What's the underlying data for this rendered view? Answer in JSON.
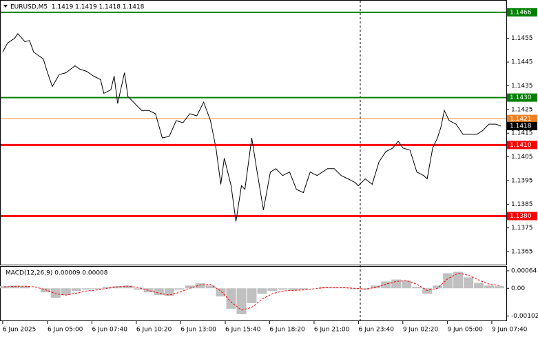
{
  "chart_data": [
    {
      "type": "line",
      "title": "EURUSD,M5  1.1419 1.1419 1.1418 1.1418",
      "xlim": [
        2.19,
        32.54
      ],
      "ylim": [
        1.13595,
        1.14709
      ],
      "xticks": [
        {
          "value": 2.31,
          "label": "6 Jun 2025"
        },
        {
          "value": 5.0,
          "label": "6 Jun 05:00"
        },
        {
          "value": 7.67,
          "label": "6 Jun 07:40"
        },
        {
          "value": 10.33,
          "label": "6 Jun 10:20"
        },
        {
          "value": 13.0,
          "label": "6 Jun 13:00"
        },
        {
          "value": 15.67,
          "label": "6 Jun 15:40"
        },
        {
          "value": 18.33,
          "label": "6 Jun 18:20"
        },
        {
          "value": 21.0,
          "label": "6 Jun 21:00"
        },
        {
          "value": 23.67,
          "label": "6 Jun 23:40"
        },
        {
          "value": 26.33,
          "label": "9 Jun 02:20"
        },
        {
          "value": 29.0,
          "label": "9 Jun 05:00"
        },
        {
          "value": 31.67,
          "label": "9 Jun 07:40"
        }
      ],
      "yticks": [
        1.1455,
        1.1445,
        1.1435,
        1.1425,
        1.1415,
        1.1405,
        1.1395,
        1.1385,
        1.1375,
        1.1365
      ],
      "levels": [
        {
          "value": 1.1466,
          "label": "1.1466",
          "color": "#008000",
          "style": "thick"
        },
        {
          "value": 1.143,
          "label": "1.1430",
          "color": "#008000",
          "style": "thick"
        },
        {
          "value": 1.1421,
          "label": "1.1421",
          "color": "#f08020",
          "style": "thin"
        },
        {
          "value": 1.1418,
          "label": "1.1418",
          "color": "#000000",
          "style": "none"
        },
        {
          "value": 1.141,
          "label": "1.1410",
          "color": "#ff0000",
          "style": "bold"
        },
        {
          "value": 1.138,
          "label": "1.1380",
          "color": "#ff0000",
          "style": "bold"
        }
      ],
      "series": [
        {
          "kind": "line",
          "color": "#000000",
          "x": [
            2.31,
            2.6,
            3.02,
            3.22,
            3.64,
            3.92,
            4.17,
            4.75,
            5.0,
            5.29,
            5.7,
            6.11,
            6.65,
            6.94,
            7.35,
            7.76,
            8.18,
            8.38,
            8.8,
            9.0,
            9.21,
            9.62,
            9.83,
            10.24,
            10.65,
            11.07,
            11.48,
            11.89,
            12.31,
            12.72,
            13.13,
            13.54,
            13.96,
            14.37,
            14.78,
            15.11,
            15.4,
            15.61,
            16.02,
            16.31,
            16.64,
            16.85,
            17.26,
            17.55,
            17.96,
            18.38,
            18.71,
            19.12,
            19.53,
            19.94,
            20.36,
            20.77,
            21.18,
            21.8,
            22.21,
            22.63,
            23.04,
            23.45,
            23.66,
            24.07,
            24.49,
            24.9,
            25.31,
            25.72,
            26.05,
            26.34,
            26.76,
            27.17,
            27.58,
            27.79,
            28.12,
            28.41,
            28.61,
            28.82,
            29.11,
            29.52,
            29.94,
            30.35,
            30.76,
            31.09,
            31.5,
            31.92,
            32.21
          ],
          "values": [
            1.14492,
            1.1453,
            1.1455,
            1.1457,
            1.14536,
            1.14541,
            1.14492,
            1.14463,
            1.14405,
            1.14347,
            1.14397,
            1.14405,
            1.14434,
            1.1442,
            1.14411,
            1.14391,
            1.14376,
            1.14318,
            1.14333,
            1.14391,
            1.14275,
            1.14405,
            1.14304,
            1.14275,
            1.14246,
            1.14246,
            1.14232,
            1.1413,
            1.14136,
            1.14203,
            1.14194,
            1.14232,
            1.14223,
            1.14281,
            1.14203,
            1.14087,
            1.13934,
            1.14044,
            1.13928,
            1.13777,
            1.13928,
            1.13913,
            1.1413,
            1.14,
            1.13826,
            1.13986,
            1.14,
            1.13971,
            1.13986,
            1.13913,
            1.13899,
            1.13986,
            1.13971,
            1.14,
            1.14,
            1.13971,
            1.13957,
            1.13942,
            1.13928,
            1.13957,
            1.13934,
            1.14029,
            1.14072,
            1.14087,
            1.14116,
            1.14087,
            1.14078,
            1.13986,
            1.13971,
            1.13957,
            1.14087,
            1.1413,
            1.14174,
            1.14246,
            1.14203,
            1.14188,
            1.14145,
            1.14145,
            1.14145,
            1.14159,
            1.14188,
            1.14188,
            1.1418
          ]
        }
      ]
    },
    {
      "type": "bar",
      "title": "MACD(12,26,9) 0.00009 0.00008",
      "xlim": [
        2.19,
        32.54
      ],
      "ylim": [
        -0.00118,
        0.00079
      ],
      "yticks": [
        0.00064,
        {
          "value": 0,
          "label": "0.00"
        },
        -0.00102
      ],
      "x": [
        2.4,
        3.02,
        3.64,
        4.25,
        4.87,
        5.49,
        6.11,
        6.73,
        7.35,
        7.97,
        8.59,
        9.21,
        9.83,
        10.45,
        11.07,
        11.69,
        12.31,
        12.92,
        13.54,
        14.16,
        14.78,
        15.4,
        16.02,
        16.64,
        17.26,
        17.88,
        18.5,
        19.12,
        19.74,
        20.36,
        20.98,
        21.6,
        22.21,
        22.83,
        23.45,
        24.07,
        24.69,
        25.31,
        25.93,
        26.55,
        27.17,
        27.79,
        28.41,
        29.03,
        29.65,
        30.27,
        30.89,
        31.51,
        32.12
      ],
      "series": [
        {
          "kind": "bar",
          "color": "#c0c0c0",
          "values": [
            8e-05,
            0.0001,
            8e-05,
            0,
            -0.00015,
            -0.00035,
            -0.00025,
            -0.0001,
            -5e-05,
            -3e-05,
            5e-05,
            8e-05,
            0.0001,
            -5e-05,
            -0.00015,
            -0.00025,
            -0.00028,
            -5e-05,
            0.0001,
            0.00018,
            0.0001,
            -0.0003,
            -0.00075,
            -0.00095,
            -0.00055,
            -0.0002,
            -0.0001,
            -5e-05,
            -8e-05,
            -5e-05,
            0,
            5e-05,
            3e-05,
            2e-05,
            -3e-05,
            -5e-05,
            0.0001,
            0.00025,
            0.00032,
            0.00028,
            5e-05,
            -0.0002,
            0.0001,
            0.00055,
            0.0006,
            0.0004,
            0.0002,
            0.0001,
            8e-05
          ]
        },
        {
          "kind": "line",
          "color": "#ff0000",
          "style": "dashed",
          "values": [
            5e-05,
            7e-05,
            8e-05,
            5e-05,
            -5e-05,
            -0.0002,
            -0.00025,
            -0.00018,
            -0.0001,
            -6e-05,
            0,
            5e-05,
            8e-05,
            3e-05,
            -8e-05,
            -0.00018,
            -0.00025,
            -0.00015,
            0,
            0.00012,
            0.00014,
            -0.0001,
            -0.0005,
            -0.0008,
            -0.0007,
            -0.0004,
            -0.0002,
            -0.0001,
            -8e-05,
            -6e-05,
            -2e-05,
            2e-05,
            3e-05,
            2e-05,
            0,
            -3e-05,
            3e-05,
            0.00015,
            0.00025,
            0.00028,
            0.00015,
            -8e-05,
            0,
            0.00035,
            0.00055,
            0.00048,
            0.0003,
            0.00015,
            0.0001
          ]
        }
      ]
    }
  ]
}
